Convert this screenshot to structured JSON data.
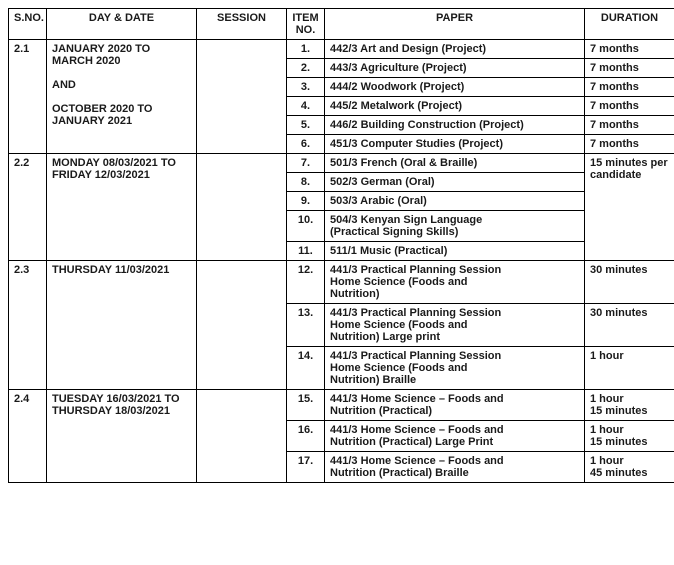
{
  "headers": {
    "sno": "S.NO.",
    "date": "DAY & DATE",
    "session": "SESSION",
    "item": "ITEM NO.",
    "paper": "PAPER",
    "duration": "DURATION"
  },
  "sections": [
    {
      "sno": "2.1",
      "date": "JANUARY 2020 TO MARCH 2020\n\nAND\n\nOCTOBER 2020 TO JANUARY 2021",
      "session": "",
      "rows": [
        {
          "item": "1.",
          "paper": "442/3  Art and Design  (Project)",
          "duration": "7 months"
        },
        {
          "item": "2.",
          "paper": "443/3  Agriculture (Project)",
          "duration": "7 months"
        },
        {
          "item": "3.",
          "paper": "444/2  Woodwork (Project)",
          "duration": "7 months"
        },
        {
          "item": "4.",
          "paper": "445/2  Metalwork (Project)",
          "duration": "7 months"
        },
        {
          "item": "5.",
          "paper": "446/2 Building Construction (Project)",
          "duration": "7 months"
        },
        {
          "item": "6.",
          "paper": "451/3  Computer Studies (Project)",
          "duration": "7 months"
        }
      ],
      "duration_span": null
    },
    {
      "sno": "2.2",
      "date": "MONDAY 08/03/2021 TO FRIDAY 12/03/2021",
      "session": "",
      "rows": [
        {
          "item": "7.",
          "paper": "501/3  French (Oral & Braille)"
        },
        {
          "item": "8.",
          "paper": "502/3  German (Oral)"
        },
        {
          "item": "9.",
          "paper": "503/3  Arabic (Oral)"
        },
        {
          "item": "10.",
          "paper": "504/3  Kenyan Sign Language\n             (Practical Signing Skills)"
        },
        {
          "item": "11.",
          "paper": "511/1  Music (Practical)"
        }
      ],
      "duration_span": "15 minutes per candidate"
    },
    {
      "sno": "2.3",
      "date": "THURSDAY 11/03/2021",
      "session": "",
      "rows": [
        {
          "item": "12.",
          "paper": "441/3  Practical Planning Session\n             Home Science  (Foods and\n             Nutrition)",
          "duration": "30 minutes"
        },
        {
          "item": "13.",
          "paper": "441/3  Practical Planning Session\n             Home Science  (Foods and\n             Nutrition)  Large print",
          "duration": "30 minutes"
        },
        {
          "item": "14.",
          "paper": "441/3  Practical Planning Session\n             Home Science  (Foods and\n             Nutrition)  Braille",
          "duration": "1 hour"
        }
      ],
      "duration_span": null
    },
    {
      "sno": "2.4",
      "date": "TUESDAY 16/03/2021 TO THURSDAY 18/03/2021",
      "session": "",
      "rows": [
        {
          "item": "15.",
          "paper": "441/3  Home Science – Foods and\n             Nutrition (Practical)",
          "duration": "1 hour\n15 minutes"
        },
        {
          "item": "16.",
          "paper": "441/3  Home Science – Foods and\n             Nutrition (Practical) Large Print",
          "duration": "1 hour\n15 minutes"
        },
        {
          "item": "17.",
          "paper": "441/3  Home Science – Foods and\n             Nutrition (Practical)   Braille",
          "duration": "1 hour\n45 minutes"
        }
      ],
      "duration_span": null
    }
  ]
}
